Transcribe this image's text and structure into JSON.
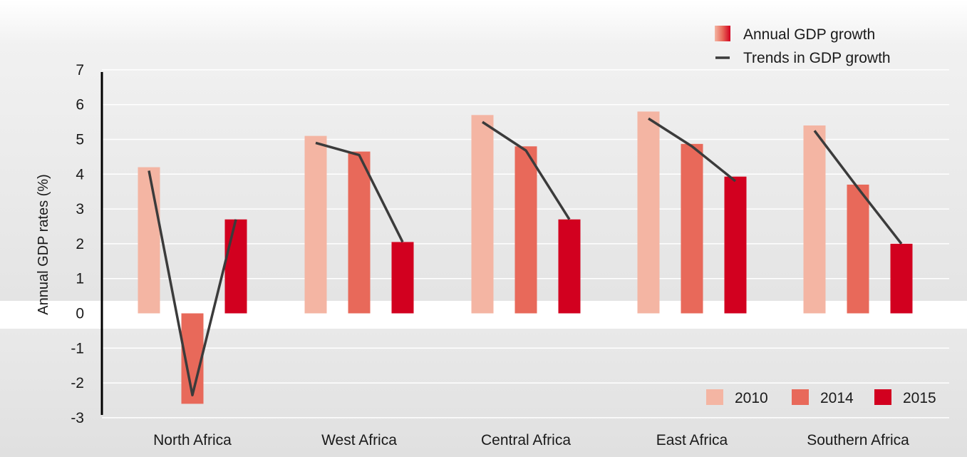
{
  "chart_data": {
    "type": "bar",
    "ylabel": "Annual GDP rates (%)",
    "ylim": [
      -3,
      7
    ],
    "yticks": [
      7,
      6,
      5,
      4,
      3,
      2,
      1,
      0,
      -1,
      -2,
      -3
    ],
    "categories": [
      "North Africa",
      "West Africa",
      "Central Africa",
      "East Africa",
      "Southern Africa"
    ],
    "series": [
      {
        "name": "2010",
        "color": "#f4b5a3",
        "values": [
          4.2,
          5.1,
          5.7,
          5.8,
          5.4
        ]
      },
      {
        "name": "2014",
        "color": "#e8695a",
        "values": [
          -2.6,
          4.65,
          4.8,
          4.87,
          3.7
        ]
      },
      {
        "name": "2015",
        "color": "#d2001f",
        "values": [
          2.7,
          2.05,
          2.7,
          3.93,
          2.0
        ]
      }
    ],
    "trend_lines": [
      [
        4.1,
        -2.35,
        2.7
      ],
      [
        4.9,
        4.55,
        2.05
      ],
      [
        5.5,
        4.68,
        2.7
      ],
      [
        5.6,
        4.8,
        3.8
      ],
      [
        5.25,
        3.6,
        2.0
      ]
    ],
    "grid": true,
    "legend": {
      "top": [
        {
          "label": "Annual GDP growth",
          "kind": "gradient-square"
        },
        {
          "label": "Trends in GDP growth",
          "kind": "line"
        }
      ],
      "bottom": [
        "2010",
        "2014",
        "2015"
      ],
      "top_placement": "top-right",
      "bottom_placement": "bottom-right"
    },
    "trend_color": "#3b3b3b"
  }
}
